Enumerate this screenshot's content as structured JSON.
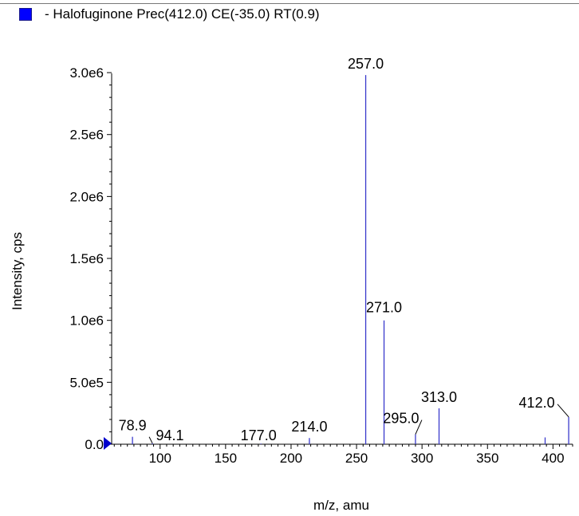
{
  "legend": {
    "text": "- Halofuginone Prec(412.0) CE(-35.0) RT(0.9)",
    "color": "#0000ff"
  },
  "chart_data": {
    "type": "bar",
    "title": "",
    "xlabel": "m/z, amu",
    "ylabel": "Intensity, cps",
    "xlim": [
      63,
      415
    ],
    "ylim": [
      0,
      3200000
    ],
    "x_ticks": [
      100,
      150,
      200,
      250,
      300,
      350,
      400
    ],
    "x_tick_labels": [
      "100",
      "150",
      "200",
      "250",
      "300",
      "350",
      "400"
    ],
    "y_ticks": [
      0,
      500000,
      1000000,
      1500000,
      2000000,
      2500000,
      3000000
    ],
    "y_tick_labels": [
      "0.0",
      "5.0e5",
      "1.0e6",
      "1.5e6",
      "2.0e6",
      "2.5e6",
      "3.0e6"
    ],
    "series_color": "#3a3acc",
    "peaks": [
      {
        "mz": 78.9,
        "intensity": 60000
      },
      {
        "mz": 94.1,
        "intensity": 8000
      },
      {
        "mz": 177.0,
        "intensity": 5000
      },
      {
        "mz": 214.0,
        "intensity": 50000
      },
      {
        "mz": 257.0,
        "intensity": 2980000
      },
      {
        "mz": 271.0,
        "intensity": 1000000
      },
      {
        "mz": 295.0,
        "intensity": 80000
      },
      {
        "mz": 313.0,
        "intensity": 290000
      },
      {
        "mz": 394.0,
        "intensity": 55000
      },
      {
        "mz": 412.0,
        "intensity": 220000
      }
    ],
    "annotations": [
      {
        "text": "78.9",
        "mz": 78.9
      },
      {
        "text": "94.1",
        "mz": 94.1
      },
      {
        "text": "177.0",
        "mz": 177.0
      },
      {
        "text": "214.0",
        "mz": 214.0
      },
      {
        "text": "257.0",
        "mz": 257.0
      },
      {
        "text": "271.0",
        "mz": 271.0
      },
      {
        "text": "295.0",
        "mz": 295.0
      },
      {
        "text": "313.0",
        "mz": 313.0
      },
      {
        "text": "412.0",
        "mz": 412.0
      }
    ]
  }
}
